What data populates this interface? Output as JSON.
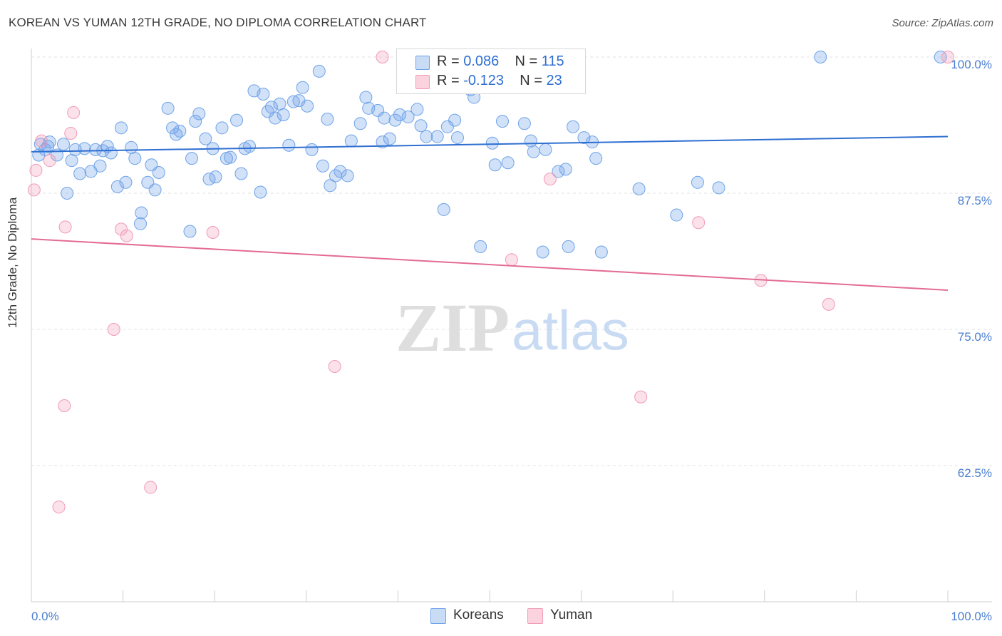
{
  "header": {
    "title": "KOREAN VS YUMAN 12TH GRADE, NO DIPLOMA CORRELATION CHART",
    "source": "Source: ZipAtlas.com"
  },
  "legend": {
    "koreans": {
      "r_label": "R =",
      "r_value": "0.086",
      "n_label": "N =",
      "n_value": "115",
      "color": "#6fa3e8"
    },
    "yuman": {
      "r_label": "R =",
      "r_value": "-0.123",
      "n_label": "N =",
      "n_value": "23",
      "color": "#f29bb6"
    }
  },
  "bottom_legend": {
    "koreans": "Koreans",
    "yuman": "Yuman"
  },
  "watermark": {
    "zip": "ZIP",
    "atlas": "atlas"
  },
  "chart_data": {
    "type": "scatter",
    "title": "KOREAN VS YUMAN 12TH GRADE, NO DIPLOMA CORRELATION CHART",
    "xlabel": "",
    "ylabel": "12th Grade, No Diploma",
    "xlim": [
      0,
      100
    ],
    "ylim": [
      50,
      102
    ],
    "x_tick_labels": [
      "0.0%",
      "100.0%"
    ],
    "y_ticks": [
      62.5,
      75.0,
      87.5,
      100.0
    ],
    "y_tick_labels": [
      "62.5%",
      "75.0%",
      "87.5%",
      "100.0%"
    ],
    "grid": true,
    "series": [
      {
        "name": "Koreans",
        "color": "#6fa3e8",
        "trend": {
          "x": [
            0,
            100
          ],
          "y": [
            91.3,
            92.7
          ]
        },
        "points": [
          [
            0.8,
            91.0
          ],
          [
            1.0,
            92.0
          ],
          [
            1.5,
            91.5
          ],
          [
            1.8,
            91.8
          ],
          [
            2.0,
            92.2
          ],
          [
            2.8,
            91.0
          ],
          [
            3.5,
            92.0
          ],
          [
            3.9,
            87.5
          ],
          [
            4.4,
            90.5
          ],
          [
            4.8,
            91.5
          ],
          [
            5.3,
            89.3
          ],
          [
            5.8,
            91.6
          ],
          [
            6.5,
            89.5
          ],
          [
            7.0,
            91.5
          ],
          [
            7.5,
            90.0
          ],
          [
            7.8,
            91.4
          ],
          [
            8.3,
            91.8
          ],
          [
            8.7,
            91.2
          ],
          [
            9.4,
            88.1
          ],
          [
            9.8,
            93.5
          ],
          [
            10.3,
            88.5
          ],
          [
            10.9,
            91.7
          ],
          [
            11.3,
            90.7
          ],
          [
            11.9,
            84.7
          ],
          [
            12.0,
            85.7
          ],
          [
            12.7,
            88.5
          ],
          [
            13.1,
            90.1
          ],
          [
            13.5,
            87.8
          ],
          [
            13.9,
            89.4
          ],
          [
            14.9,
            95.3
          ],
          [
            15.4,
            93.5
          ],
          [
            15.8,
            92.9
          ],
          [
            16.2,
            93.2
          ],
          [
            17.3,
            84.0
          ],
          [
            17.5,
            90.7
          ],
          [
            17.9,
            94.1
          ],
          [
            18.3,
            94.8
          ],
          [
            19.0,
            92.5
          ],
          [
            19.4,
            88.8
          ],
          [
            19.8,
            91.6
          ],
          [
            20.1,
            89.0
          ],
          [
            20.8,
            93.5
          ],
          [
            21.3,
            90.7
          ],
          [
            21.7,
            90.8
          ],
          [
            22.4,
            94.2
          ],
          [
            22.9,
            89.3
          ],
          [
            23.3,
            91.6
          ],
          [
            23.8,
            91.8
          ],
          [
            24.3,
            96.9
          ],
          [
            25.0,
            87.6
          ],
          [
            25.3,
            96.6
          ],
          [
            25.8,
            95.0
          ],
          [
            26.2,
            95.4
          ],
          [
            26.6,
            94.4
          ],
          [
            27.1,
            95.7
          ],
          [
            27.5,
            94.7
          ],
          [
            28.1,
            91.9
          ],
          [
            28.6,
            95.9
          ],
          [
            29.2,
            96.0
          ],
          [
            29.6,
            97.2
          ],
          [
            30.1,
            95.5
          ],
          [
            30.6,
            91.5
          ],
          [
            31.4,
            98.7
          ],
          [
            31.8,
            90.0
          ],
          [
            32.3,
            94.3
          ],
          [
            32.6,
            88.2
          ],
          [
            33.2,
            89.1
          ],
          [
            33.7,
            89.5
          ],
          [
            34.5,
            89.1
          ],
          [
            34.9,
            92.3
          ],
          [
            35.9,
            93.9
          ],
          [
            36.5,
            96.3
          ],
          [
            36.8,
            95.3
          ],
          [
            37.8,
            95.1
          ],
          [
            38.3,
            92.2
          ],
          [
            38.5,
            94.4
          ],
          [
            39.1,
            92.5
          ],
          [
            39.7,
            94.2
          ],
          [
            40.2,
            94.7
          ],
          [
            40.8,
            99.9
          ],
          [
            41.1,
            94.5
          ],
          [
            42.1,
            95.2
          ],
          [
            42.5,
            93.7
          ],
          [
            43.1,
            92.7
          ],
          [
            44.3,
            92.7
          ],
          [
            45.0,
            86.0
          ],
          [
            45.4,
            93.6
          ],
          [
            46.2,
            94.2
          ],
          [
            46.5,
            92.6
          ],
          [
            47.9,
            97.0
          ],
          [
            48.3,
            96.3
          ],
          [
            49.0,
            82.6
          ],
          [
            50.3,
            92.1
          ],
          [
            50.6,
            90.1
          ],
          [
            51.4,
            94.1
          ],
          [
            52.0,
            90.3
          ],
          [
            53.8,
            93.9
          ],
          [
            54.5,
            92.3
          ],
          [
            54.8,
            91.3
          ],
          [
            55.8,
            82.1
          ],
          [
            56.1,
            91.5
          ],
          [
            57.5,
            89.5
          ],
          [
            58.3,
            89.7
          ],
          [
            58.6,
            82.6
          ],
          [
            59.1,
            93.6
          ],
          [
            60.3,
            92.6
          ],
          [
            61.2,
            92.2
          ],
          [
            61.6,
            90.7
          ],
          [
            62.2,
            82.1
          ],
          [
            66.3,
            87.9
          ],
          [
            70.4,
            85.5
          ],
          [
            72.7,
            88.5
          ],
          [
            75.0,
            88.0
          ],
          [
            86.1,
            100.0
          ],
          [
            99.2,
            100.0
          ]
        ]
      },
      {
        "name": "Yuman",
        "color": "#f29bb6",
        "trend": {
          "x": [
            0,
            100
          ],
          "y": [
            83.3,
            78.6
          ]
        },
        "points": [
          [
            0.3,
            87.8
          ],
          [
            0.5,
            89.6
          ],
          [
            1.1,
            92.3
          ],
          [
            2.0,
            90.5
          ],
          [
            3.0,
            58.7
          ],
          [
            3.6,
            68.0
          ],
          [
            3.7,
            84.4
          ],
          [
            4.3,
            93.0
          ],
          [
            4.6,
            94.9
          ],
          [
            9.0,
            75.0
          ],
          [
            9.8,
            84.2
          ],
          [
            10.4,
            83.6
          ],
          [
            13.0,
            60.5
          ],
          [
            19.8,
            83.9
          ],
          [
            33.1,
            71.6
          ],
          [
            38.3,
            100.0
          ],
          [
            52.4,
            81.4
          ],
          [
            56.6,
            88.8
          ],
          [
            66.5,
            68.8
          ],
          [
            72.8,
            84.8
          ],
          [
            79.6,
            79.5
          ],
          [
            87.0,
            77.3
          ],
          [
            100.0,
            100.0
          ]
        ]
      }
    ]
  }
}
